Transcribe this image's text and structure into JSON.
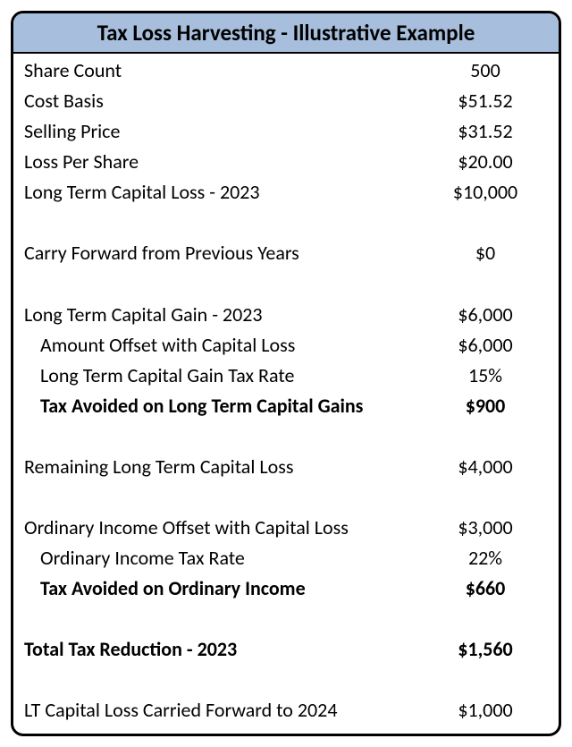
{
  "title": "Tax Loss Harvesting - Illustrative Example",
  "colors": {
    "title_bg": "#a7bedd",
    "border": "#000000",
    "text": "#000000",
    "background": "#ffffff"
  },
  "rows": {
    "share_count": {
      "label": "Share Count",
      "value": "500"
    },
    "cost_basis": {
      "label": "Cost Basis",
      "value": "$51.52"
    },
    "selling_price": {
      "label": "Selling Price",
      "value": "$31.52"
    },
    "loss_per_share": {
      "label": "Loss Per Share",
      "value": "$20.00"
    },
    "lt_cap_loss_2023": {
      "label": "Long Term Capital Loss - 2023",
      "value": "$10,000"
    },
    "carry_forward_prev": {
      "label": "Carry Forward from Previous Years",
      "value": "$0"
    },
    "lt_cap_gain_2023": {
      "label": "Long Term Capital Gain - 2023",
      "value": "$6,000"
    },
    "amount_offset": {
      "label": "Amount Offset with Capital Loss",
      "value": "$6,000"
    },
    "lt_gain_tax_rate": {
      "label": "Long Term Capital Gain Tax Rate",
      "value": "15%"
    },
    "tax_avoided_lt": {
      "label": "Tax Avoided on Long Term Capital Gains",
      "value": "$900"
    },
    "remaining_lt_loss": {
      "label": "Remaining Long Term Capital Loss",
      "value": "$4,000"
    },
    "ordinary_offset": {
      "label": "Ordinary Income Offset with Capital Loss",
      "value": "$3,000"
    },
    "ordinary_rate": {
      "label": "Ordinary Income Tax Rate",
      "value": "22%"
    },
    "tax_avoided_ordinary": {
      "label": "Tax Avoided on Ordinary Income",
      "value": "$660"
    },
    "total_reduction": {
      "label": "Total Tax Reduction - 2023",
      "value": "$1,560"
    },
    "lt_loss_carried_2024": {
      "label": "LT Capital Loss Carried Forward to 2024",
      "value": "$1,000"
    }
  }
}
